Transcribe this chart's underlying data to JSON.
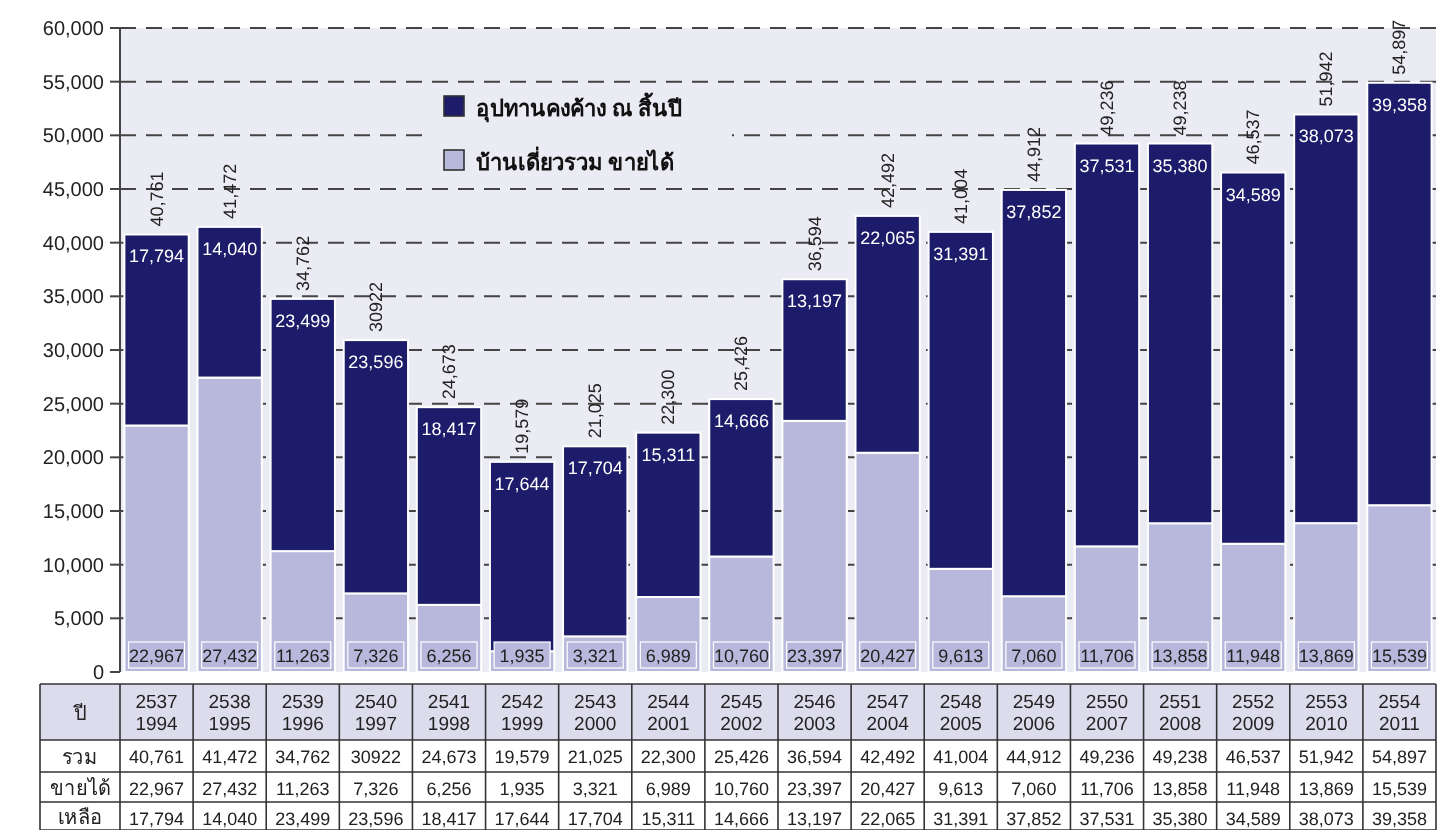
{
  "chart_data": {
    "type": "bar",
    "stacked": true,
    "categories": [
      "2537 1994",
      "2538 1995",
      "2539 1996",
      "2540 1997",
      "2541 1998",
      "2542 1999",
      "2543 2000",
      "2544 2001",
      "2545 2002",
      "2546 2003",
      "2547 2004",
      "2548 2005",
      "2549 2006",
      "2550 2007",
      "2551 2008",
      "2552 2009",
      "2553 2010",
      "2554 2011"
    ],
    "series": [
      {
        "name": "บ้านเดี่ยวรวม ขายได้",
        "color": "#b8b8dc",
        "values": [
          22967,
          27432,
          11263,
          7326,
          6256,
          1935,
          3321,
          6989,
          10760,
          23397,
          20427,
          9613,
          7060,
          11706,
          13858,
          11948,
          13869,
          15539
        ],
        "value_labels": [
          "22,967",
          "27,432",
          "11,263",
          "7,326",
          "6,256",
          "1,935",
          "3,321",
          "6,989",
          "10,760",
          "23,397",
          "20,427",
          "9,613",
          "7,060",
          "11,706",
          "13,858",
          "11,948",
          "13,869",
          "15,539"
        ]
      },
      {
        "name": "อุปทานคงค้าง ณ สิ้นปี",
        "color": "#1c1c6b",
        "values": [
          17794,
          14040,
          23499,
          23596,
          18417,
          17644,
          17704,
          15311,
          14666,
          13197,
          22065,
          31391,
          37852,
          37531,
          35380,
          34589,
          38073,
          39358
        ],
        "value_labels": [
          "17,794",
          "14,040",
          "23,499",
          "23,596",
          "18,417",
          "17,644",
          "17,704",
          "15,311",
          "14,666",
          "13,197",
          "22,065",
          "31,391",
          "37,852",
          "37,531",
          "35,380",
          "34,589",
          "38,073",
          "39,358"
        ]
      }
    ],
    "totals": [
      "40,761",
      "41,472",
      "34,762",
      "30922",
      "24,673",
      "19,579",
      "21,025",
      "22,300",
      "25,426",
      "36,594",
      "42,492",
      "41,004",
      "44,912",
      "49,236",
      "49,238",
      "46,537",
      "51,942",
      "54,897"
    ],
    "data_labels": true,
    "ylim": [
      0,
      60000
    ],
    "yticks": [
      0,
      {
        "value": 5000,
        "label": "5,000"
      },
      {
        "value": 10000,
        "label": "10,000"
      },
      {
        "value": 15000,
        "label": "15,000"
      },
      {
        "value": 20000,
        "label": "20,000"
      },
      {
        "value": 25000,
        "label": "25,000"
      },
      {
        "value": 30000,
        "label": "30,000"
      },
      {
        "value": 35000,
        "label": "35,000"
      },
      {
        "value": 40000,
        "label": "40,000"
      },
      {
        "value": 45000,
        "label": "45,000"
      },
      {
        "value": 50000,
        "label": "50,000"
      },
      {
        "value": 55000,
        "label": "55,000"
      },
      {
        "value": 60000,
        "label": "60,000"
      }
    ],
    "grid": "y",
    "legend": "top left",
    "annotations": [
      "ปี",
      "รวม",
      "ขายได้",
      "เหลือ"
    ]
  }
}
